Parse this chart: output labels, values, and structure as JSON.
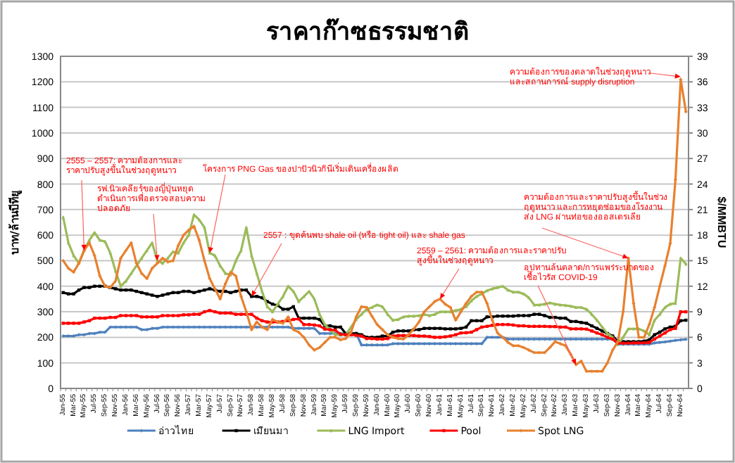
{
  "chart_data": {
    "type": "line",
    "title": "ราคาก๊าซธรรมชาติ",
    "ylabel": "บาท/ล้านบีทียู",
    "y2label": "$/MMBTU",
    "categories": [
      "Jan-55",
      null,
      "Mar-55",
      null,
      "May-55",
      null,
      "Jul-55",
      null,
      "Sep-55",
      null,
      "Nov-55",
      null,
      "Jan-56",
      null,
      "Mar-56",
      null,
      "May-56",
      null,
      "Jul-56",
      null,
      "Sep-56",
      null,
      "Nov-56",
      null,
      "Jan-57",
      null,
      "Mar-57",
      null,
      "May-57",
      null,
      "Jul-57",
      null,
      "Sep-57",
      null,
      "Nov-57",
      null,
      "Jan-58",
      null,
      "Mar-58",
      null,
      "May-58",
      null,
      "Jul-58",
      null,
      "Sep-58",
      null,
      "Nov-58",
      null,
      "Jan-59",
      null,
      "Mar-59",
      null,
      "May-59",
      null,
      "Jul-59",
      null,
      "Sep-59",
      null,
      "Nov-59",
      null,
      "Jan-60",
      null,
      "Mar-60",
      null,
      "May-60",
      null,
      "Jul-60",
      null,
      "Sep-60",
      null,
      "Nov-60",
      null,
      "Jan-61",
      null,
      "Mar-61",
      null,
      "May-61",
      null,
      "Jul-61",
      null,
      "Sep-61",
      null,
      "Nov-61",
      null,
      "Jan-62",
      null,
      "Mar-62",
      null,
      "May-62",
      null,
      "Jul-62",
      null,
      "Sep-62",
      null,
      "Nov-62",
      null,
      "Jan-63",
      null,
      "Mar-63",
      null,
      "May-63",
      null,
      "Jul-63",
      null,
      "Sep-63",
      null,
      "Nov-63",
      null,
      "Jan-64",
      null,
      "Mar-64",
      null,
      "May-64",
      null,
      "Jul-64",
      null,
      "Sep-64",
      null,
      "Nov-64",
      null
    ],
    "series": [
      {
        "name": "อ่าวไทย",
        "color": "#4f81bd",
        "marker": "cross",
        "values": [
          205,
          205,
          205,
          210,
          210,
          215,
          215,
          220,
          220,
          240,
          240,
          240,
          240,
          240,
          240,
          230,
          230,
          235,
          235,
          240,
          240,
          240,
          240,
          240,
          240,
          240,
          240,
          240,
          240,
          240,
          240,
          240,
          240,
          240,
          240,
          240,
          240,
          240,
          240,
          240,
          240,
          240,
          240,
          240,
          235,
          235,
          235,
          235,
          235,
          215,
          215,
          215,
          215,
          215,
          215,
          215,
          215,
          170,
          170,
          170,
          170,
          170,
          170,
          175,
          175,
          175,
          175,
          175,
          175,
          175,
          175,
          175,
          175,
          175,
          175,
          175,
          175,
          175,
          175,
          175,
          175,
          200,
          200,
          200,
          200,
          193,
          193,
          193,
          193,
          193,
          193,
          193,
          193,
          193,
          193,
          193,
          193,
          193,
          193,
          193,
          193,
          193,
          193,
          193,
          193,
          193,
          173,
          173,
          173,
          173,
          173,
          173,
          173,
          178,
          180,
          182,
          185,
          188,
          190,
          192
        ]
      },
      {
        "name": "เมียนมา",
        "color": "#000000",
        "marker": "square",
        "values": [
          375,
          370,
          370,
          385,
          395,
          395,
          400,
          400,
          400,
          395,
          390,
          385,
          385,
          385,
          380,
          375,
          370,
          365,
          360,
          365,
          370,
          375,
          375,
          380,
          380,
          375,
          380,
          385,
          390,
          385,
          380,
          380,
          375,
          380,
          385,
          385,
          360,
          360,
          355,
          340,
          330,
          325,
          310,
          310,
          320,
          275,
          275,
          275,
          275,
          270,
          245,
          245,
          240,
          240,
          215,
          215,
          215,
          210,
          200,
          200,
          200,
          205,
          205,
          220,
          225,
          225,
          225,
          230,
          230,
          235,
          235,
          235,
          235,
          233,
          233,
          233,
          235,
          240,
          265,
          265,
          265,
          280,
          280,
          283,
          283,
          283,
          283,
          285,
          285,
          285,
          290,
          290,
          285,
          278,
          278,
          275,
          275,
          262,
          262,
          258,
          255,
          245,
          235,
          225,
          215,
          205,
          185,
          183,
          183,
          183,
          183,
          185,
          190,
          210,
          220,
          233,
          240,
          243,
          265,
          267
        ]
      },
      {
        "name": "LNG Import",
        "color": "#9bbb59",
        "marker": "triangle",
        "values": [
          670,
          570,
          520,
          490,
          540,
          580,
          610,
          580,
          575,
          530,
          460,
          400,
          420,
          450,
          480,
          510,
          540,
          570,
          500,
          490,
          510,
          535,
          530,
          570,
          600,
          680,
          660,
          630,
          530,
          520,
          480,
          450,
          445,
          500,
          540,
          630,
          520,
          450,
          380,
          320,
          300,
          330,
          360,
          400,
          380,
          340,
          360,
          380,
          350,
          290,
          250,
          230,
          210,
          210,
          210,
          240,
          270,
          290,
          310,
          317,
          327,
          320,
          290,
          267,
          270,
          280,
          283,
          283,
          285,
          290,
          285,
          290,
          300,
          300,
          300,
          305,
          310,
          320,
          343,
          360,
          370,
          383,
          390,
          395,
          400,
          385,
          377,
          377,
          370,
          355,
          327,
          327,
          330,
          335,
          330,
          327,
          325,
          322,
          317,
          317,
          310,
          290,
          267,
          240,
          215,
          200,
          173,
          200,
          233,
          233,
          233,
          225,
          210,
          267,
          290,
          317,
          330,
          333,
          510,
          487
        ]
      },
      {
        "name": "Pool",
        "color": "#ff0000",
        "marker": "square",
        "values": [
          255,
          255,
          255,
          255,
          260,
          265,
          275,
          275,
          275,
          278,
          278,
          285,
          285,
          285,
          285,
          280,
          280,
          280,
          280,
          285,
          285,
          285,
          285,
          288,
          288,
          290,
          290,
          300,
          305,
          300,
          295,
          295,
          295,
          290,
          290,
          290,
          290,
          275,
          265,
          260,
          260,
          260,
          262,
          265,
          270,
          272,
          250,
          250,
          248,
          245,
          232,
          230,
          228,
          212,
          210,
          210,
          208,
          205,
          195,
          195,
          193,
          193,
          195,
          205,
          207,
          207,
          207,
          207,
          205,
          205,
          203,
          200,
          200,
          202,
          205,
          210,
          217,
          218,
          220,
          230,
          240,
          243,
          247,
          250,
          250,
          250,
          248,
          245,
          245,
          243,
          243,
          243,
          243,
          242,
          242,
          240,
          240,
          233,
          233,
          233,
          232,
          225,
          217,
          210,
          200,
          193,
          177,
          177,
          177,
          178,
          178,
          178,
          180,
          193,
          205,
          217,
          230,
          235,
          300,
          300
        ]
      },
      {
        "name": "Spot LNG",
        "color": "#e8812f",
        "marker": "cross",
        "values": [
          500,
          470,
          455,
          490,
          540,
          570,
          520,
          440,
          400,
          395,
          420,
          510,
          540,
          570,
          490,
          450,
          430,
          470,
          490,
          510,
          495,
          500,
          560,
          600,
          620,
          635,
          580,
          500,
          430,
          390,
          350,
          410,
          455,
          440,
          360,
          300,
          230,
          260,
          240,
          230,
          270,
          260,
          255,
          280,
          230,
          220,
          200,
          170,
          150,
          160,
          180,
          200,
          200,
          190,
          195,
          220,
          280,
          320,
          317,
          283,
          250,
          230,
          210,
          200,
          195,
          193,
          210,
          233,
          260,
          300,
          320,
          340,
          350,
          330,
          317,
          267,
          300,
          333,
          360,
          377,
          377,
          333,
          267,
          217,
          200,
          180,
          167,
          167,
          160,
          150,
          140,
          140,
          140,
          160,
          183,
          175,
          167,
          133,
          93,
          107,
          67,
          67,
          67,
          67,
          100,
          150,
          183,
          300,
          510,
          333,
          200,
          200,
          250,
          317,
          400,
          480,
          567,
          817,
          1210,
          1083
        ]
      }
    ],
    "ylim": [
      0,
      1300
    ],
    "yticks": [
      0,
      100,
      200,
      300,
      400,
      500,
      600,
      700,
      800,
      900,
      1000,
      1100,
      1200,
      1300
    ],
    "y2lim": [
      0,
      39
    ],
    "y2ticks": [
      0,
      3,
      6,
      9,
      12,
      15,
      18,
      21,
      24,
      27,
      30,
      33,
      36,
      39
    ],
    "grid": "y",
    "legend": "bottom",
    "annotations": [
      {
        "text": "2555 – 2557: ความต้องการและราคาปรับสูงขึ้นในช่วงฤดูหนาว",
        "x": "May-55",
        "y": 540
      },
      {
        "text": "รฟ.นิวเคลียร์ของญี่ปุ่นหยุดดำเนินการเพื่อตรวจสอบความปลอดภัย",
        "x": "Jul-56",
        "y": 500
      },
      {
        "text": "โครงการ PNG Gas ของปาปัวนิวกินีเริ่มเดินเครื่องผลิต",
        "x": "May-57",
        "y": 530
      },
      {
        "text": "2557 : ขุดค้นพบ shale oil (หรือ tight oil) และ shale gas",
        "x": "Jan-58",
        "y": 360
      },
      {
        "text": "2559 – 2561: ความต้องการและราคาปรับสูงขึ้นในช่วงฤดูหนาว",
        "x": "Jan-61",
        "y": 350
      },
      {
        "text": "ความต้องการและราคาปรับสูงขึ้นในช่วงฤดูหนาว และการหยุดซ่อมของโรงงานส่ง LNG ผ่านท่อของออสเตรเลีย",
        "x": "Jan-64",
        "y": 510
      },
      {
        "text": "อุปทานล้นตลาด/การแพร่ระบาดของเชื้อไวรัส COVID-19",
        "x": "Mar-63",
        "y": 93
      },
      {
        "text": "ความต้องการของตลาดในช่วงฤดูหนาว และสถานการณ์ supply disruption",
        "x": "Nov-64",
        "y": 1220
      }
    ]
  }
}
